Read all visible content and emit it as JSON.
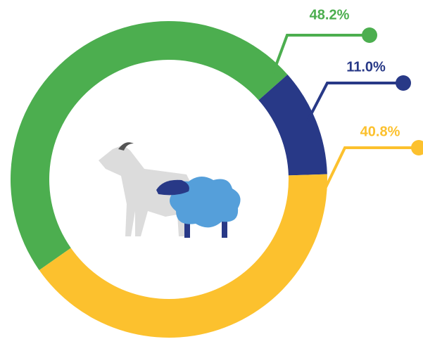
{
  "chart_data": {
    "type": "donut",
    "values": [
      48.2,
      11.0,
      40.8
    ],
    "value_labels": [
      "48.2%",
      "11.0%",
      "40.8%"
    ],
    "colors": [
      "#4cae4f",
      "#283987",
      "#fcc12e"
    ]
  }
}
